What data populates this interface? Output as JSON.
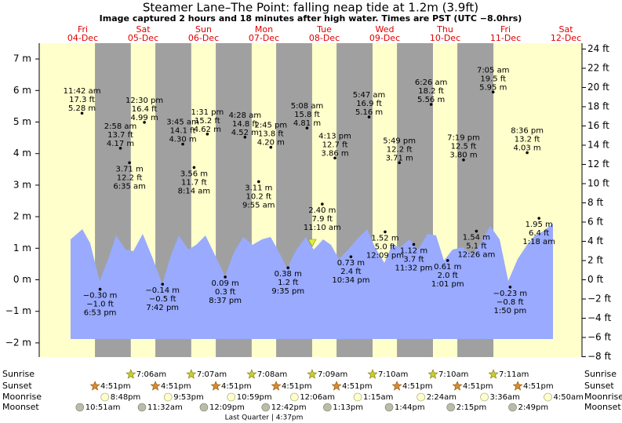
{
  "chart_data": {
    "type": "tide",
    "title": "Steamer Lane–The Point: falling  neap tide at 1.2m (3.9ft)",
    "subtitle": "Image captured 2 hours and 18 minutes after high water. Times are PST (UTC −8.0hrs)",
    "ylim": [
      -2.45,
      7.5
    ],
    "yticks": [
      {
        "value": 7,
        "label": "7 m"
      },
      {
        "value": 6,
        "label": "6 m"
      },
      {
        "value": 5,
        "label": "5 m"
      },
      {
        "value": 4,
        "label": "4 m"
      },
      {
        "value": 3,
        "label": "3 m"
      },
      {
        "value": 2,
        "label": "2 m"
      },
      {
        "value": 1,
        "label": "1 m"
      },
      {
        "value": 0,
        "label": "0 m"
      },
      {
        "value": -1,
        "label": "−1 m"
      },
      {
        "value": -2,
        "label": "−2 m"
      }
    ],
    "y2lim": [
      -8.04,
      24.61
    ],
    "y2ticks": [
      {
        "value": 24,
        "label": "24 ft"
      },
      {
        "value": 22,
        "label": "22 ft"
      },
      {
        "value": 20,
        "label": "20 ft"
      },
      {
        "value": 18,
        "label": "18 ft"
      },
      {
        "value": 16,
        "label": "16 ft"
      },
      {
        "value": 14,
        "label": "14 ft"
      },
      {
        "value": 12,
        "label": "12 ft"
      },
      {
        "value": 10,
        "label": "10 ft"
      },
      {
        "value": 8,
        "label": "8 ft"
      },
      {
        "value": 6,
        "label": "6 ft"
      },
      {
        "value": 4,
        "label": "4 ft"
      },
      {
        "value": 2,
        "label": "2 ft"
      },
      {
        "value": 0,
        "label": "0 ft"
      },
      {
        "value": -2,
        "label": "−2 ft"
      },
      {
        "value": -4,
        "label": "−4 ft"
      },
      {
        "value": -6,
        "label": "−6 ft"
      },
      {
        "value": -8,
        "label": "−8 ft"
      }
    ],
    "row_labels": {
      "sunrise": "Sunrise",
      "sunset": "Sunset",
      "moonrise": "Moonrise",
      "moonset": "Moonset"
    },
    "days": [
      {
        "weekday": "Fri",
        "date": "04-Dec",
        "sunrise": null,
        "sunset": "4:51pm",
        "moonrise": "8:48pm",
        "moonset": "10:51am",
        "tides": [
          {
            "time": "11:42 am",
            "m": {
              "value": 5.28,
              "label": "5.28 m"
            },
            "ft": "17.3 ft"
          },
          {
            "time": "6:53 pm",
            "m": {
              "value": -0.3,
              "label": "−0.30 m"
            },
            "ft": "−1.0 ft"
          }
        ]
      },
      {
        "weekday": "Sat",
        "date": "05-Dec",
        "sunrise": "7:06am",
        "sunset": "4:51pm",
        "moonrise": "9:53pm",
        "moonset": "11:32am",
        "tides": [
          {
            "time": "2:58 am",
            "m": {
              "value": 4.17,
              "label": "4.17 m"
            },
            "ft": "13.7 ft"
          },
          {
            "time": "6:35 am",
            "m": {
              "value": 3.71,
              "label": "3.71 m"
            },
            "ft": "12.2 ft"
          },
          {
            "time": "12:30 pm",
            "m": {
              "value": 4.99,
              "label": "4.99 m"
            },
            "ft": "16.4 ft"
          },
          {
            "time": "7:42 pm",
            "m": {
              "value": -0.14,
              "label": "−0.14 m"
            },
            "ft": "−0.5 ft"
          }
        ]
      },
      {
        "weekday": "Sun",
        "date": "06-Dec",
        "sunrise": "7:07am",
        "sunset": "4:51pm",
        "moonrise": "10:59pm",
        "moonset": "12:09pm",
        "tides": [
          {
            "time": "3:45 am",
            "m": {
              "value": 4.3,
              "label": "4.30 m"
            },
            "ft": "14.1 ft"
          },
          {
            "time": "8:14 am",
            "m": {
              "value": 3.56,
              "label": "3.56 m"
            },
            "ft": "11.7 ft"
          },
          {
            "time": "1:31 pm",
            "m": {
              "value": 4.62,
              "label": "4.62 m"
            },
            "ft": "15.2 ft"
          },
          {
            "time": "8:37 pm",
            "m": {
              "value": 0.09,
              "label": "0.09 m"
            },
            "ft": "0.3 ft"
          }
        ]
      },
      {
        "weekday": "Mon",
        "date": "07-Dec",
        "sunrise": "7:08am",
        "sunset": "4:51pm",
        "moonrise": null,
        "moonset": "12:42pm",
        "moon_phase": "Last Quarter | 4:37pm",
        "tides": [
          {
            "time": "4:28 am",
            "m": {
              "value": 4.52,
              "label": "4.52 m"
            },
            "ft": "14.8 ft"
          },
          {
            "time": "9:55 am",
            "m": {
              "value": 3.11,
              "label": "3.11 m"
            },
            "ft": "10.2 ft"
          },
          {
            "time": "2:45 pm",
            "m": {
              "value": 4.2,
              "label": "4.20 m"
            },
            "ft": "13.8 ft"
          },
          {
            "time": "9:35 pm",
            "m": {
              "value": 0.38,
              "label": "0.38 m"
            },
            "ft": "1.2 ft"
          }
        ]
      },
      {
        "weekday": "Tue",
        "date": "08-Dec",
        "sunrise": "7:09am",
        "sunset": "4:51pm",
        "moonrise": "12:06am",
        "moonset": "1:13pm",
        "tides": [
          {
            "time": "5:08 am",
            "m": {
              "value": 4.81,
              "label": "4.81 m"
            },
            "ft": "15.8 ft"
          },
          {
            "time": "11:10 am",
            "m": {
              "value": 2.4,
              "label": "2.40 m"
            },
            "ft": "7.9 ft"
          },
          {
            "time": "4:13 pm",
            "m": {
              "value": 3.86,
              "label": "3.86 m"
            },
            "ft": "12.7 ft"
          },
          {
            "time": "10:34 pm",
            "m": {
              "value": 0.73,
              "label": "0.73 m"
            },
            "ft": "2.4 ft"
          }
        ]
      },
      {
        "weekday": "Wed",
        "date": "09-Dec",
        "sunrise": "7:10am",
        "sunset": "4:51pm",
        "moonrise": "1:15am",
        "moonset": "1:44pm",
        "tides": [
          {
            "time": "5:47 am",
            "m": {
              "value": 5.16,
              "label": "5.16 m"
            },
            "ft": "16.9 ft"
          },
          {
            "time": "12:09 pm",
            "m": {
              "value": 1.52,
              "label": "1.52 m"
            },
            "ft": "5.0 ft"
          },
          {
            "time": "5:49 pm",
            "m": {
              "value": 3.71,
              "label": "3.71 m"
            },
            "ft": "12.2 ft"
          },
          {
            "time": "11:32 pm",
            "m": {
              "value": 1.12,
              "label": "1.12 m"
            },
            "ft": "3.7 ft"
          }
        ]
      },
      {
        "weekday": "Thu",
        "date": "10-Dec",
        "sunrise": "7:10am",
        "sunset": "4:51pm",
        "moonrise": "2:24am",
        "moonset": "2:15pm",
        "tides": [
          {
            "time": "6:26 am",
            "m": {
              "value": 5.56,
              "label": "5.56 m"
            },
            "ft": "18.2 ft"
          },
          {
            "time": "1:01 pm",
            "m": {
              "value": 0.61,
              "label": "0.61 m"
            },
            "ft": "2.0 ft"
          },
          {
            "time": "7:19 pm",
            "m": {
              "value": 3.8,
              "label": "3.80 m"
            },
            "ft": "12.5 ft"
          }
        ]
      },
      {
        "weekday": "Fri",
        "date": "11-Dec",
        "sunrise": "7:11am",
        "sunset": "4:51pm",
        "moonrise": "3:36am",
        "moonset": "2:49pm",
        "tides": [
          {
            "time": "12:26 am",
            "m": {
              "value": 1.54,
              "label": "1.54 m"
            },
            "ft": "5.1 ft"
          },
          {
            "time": "7:05 am",
            "m": {
              "value": 5.95,
              "label": "5.95 m"
            },
            "ft": "19.5 ft"
          },
          {
            "time": "1:50 pm",
            "m": {
              "value": -0.23,
              "label": "−0.23 m"
            },
            "ft": "−0.8 ft"
          },
          {
            "time": "8:36 pm",
            "m": {
              "value": 4.03,
              "label": "4.03 m"
            },
            "ft": "13.2 ft"
          }
        ]
      },
      {
        "weekday": "Sat",
        "date": "12-Dec",
        "sunrise": null,
        "sunset": null,
        "moonrise": "4:50am",
        "moonset": null,
        "tides": [
          {
            "time": "1:18 am",
            "m": {
              "value": 1.95,
              "label": "1.95 m"
            },
            "ft": "6.4 ft"
          }
        ]
      }
    ]
  }
}
